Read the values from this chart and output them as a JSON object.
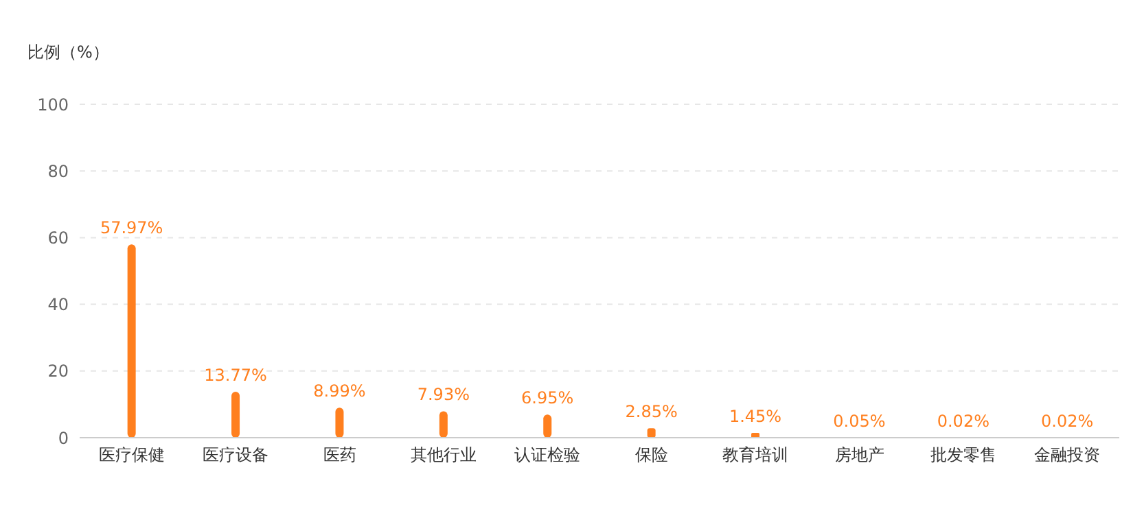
{
  "chart_data": {
    "type": "bar",
    "ylabel": "比例（%）",
    "categories": [
      "医疗保健",
      "医疗设备",
      "医药",
      "其他行业",
      "认证检验",
      "保险",
      "教育培训",
      "房地产",
      "批发零售",
      "金融投资"
    ],
    "values": [
      57.97,
      13.77,
      8.99,
      7.93,
      6.95,
      2.85,
      1.45,
      0.05,
      0.02,
      0.02
    ],
    "value_labels": [
      "57.97%",
      "13.77%",
      "8.99%",
      "7.93%",
      "6.95%",
      "2.85%",
      "1.45%",
      "0.05%",
      "0.02%",
      "0.02%"
    ],
    "color": "#ff7f1e",
    "ylim": [
      0,
      100
    ],
    "yticks": [
      0,
      20,
      40,
      60,
      80,
      100
    ],
    "grid": "y"
  }
}
